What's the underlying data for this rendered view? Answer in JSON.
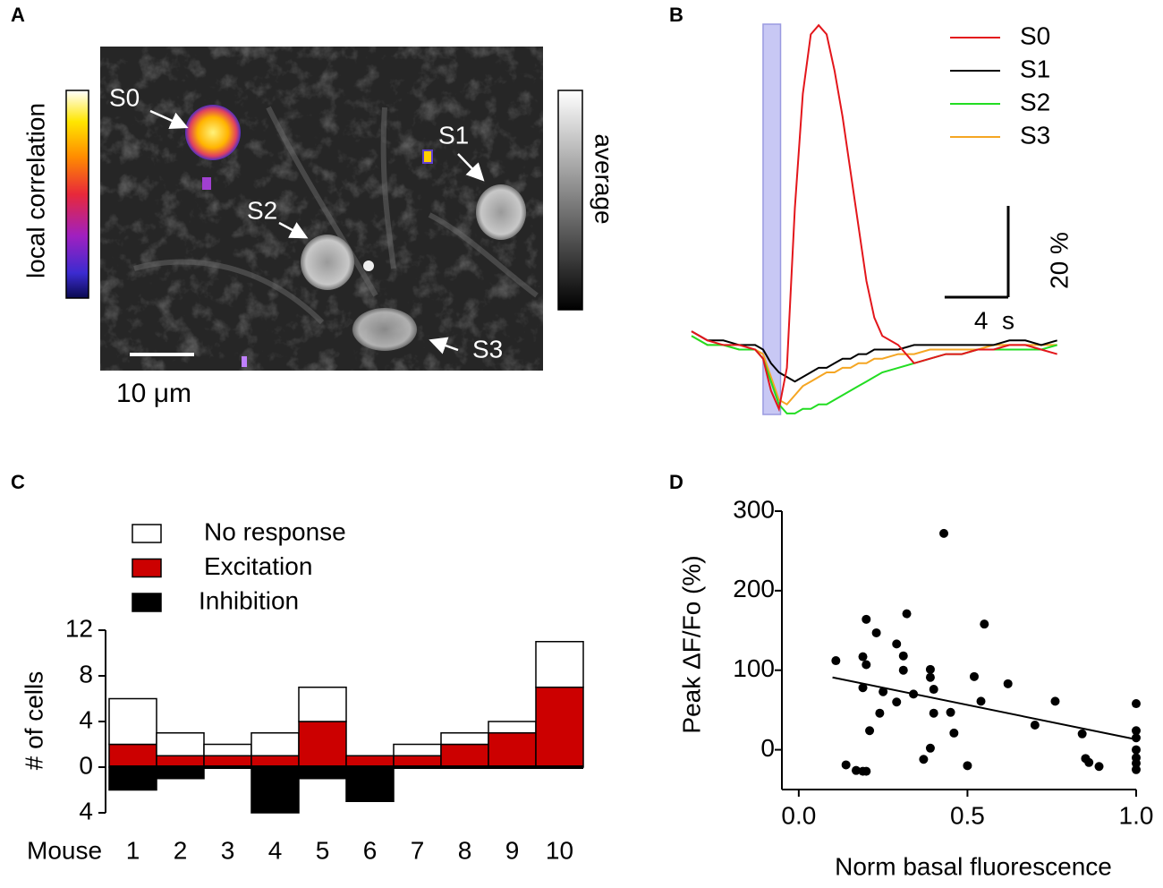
{
  "chart_data": [
    {
      "type": "image",
      "panel": "A",
      "labels": [
        "S0",
        "S1",
        "S2",
        "S3"
      ],
      "colorbar_left": "local correlation",
      "colorbar_right": "average",
      "scalebar": "10 μm"
    },
    {
      "type": "line",
      "panel": "B",
      "x": [
        0,
        1,
        2,
        3,
        4,
        4.5,
        5,
        5.5,
        6,
        6.5,
        7,
        7.5,
        8,
        8.5,
        9,
        9.5,
        10,
        10.5,
        11,
        11.5,
        12,
        13,
        14,
        15,
        16,
        17,
        18,
        19,
        20,
        21,
        22,
        23
      ],
      "xlim": [
        0,
        23.3
      ],
      "ylim": [
        -16,
        72
      ],
      "stimulus": [
        4.5,
        5.6
      ],
      "x_scalebar": {
        "value": 4,
        "label": "4  s"
      },
      "y_scalebar": {
        "value": 20,
        "label": "20 %"
      },
      "series": [
        {
          "name": "S0",
          "color": "#e3161b",
          "values": [
            3,
            1,
            0,
            0,
            -1,
            -3,
            -10,
            -14,
            -5,
            30,
            55,
            68,
            70,
            68,
            60,
            50,
            38,
            26,
            14,
            6,
            2,
            0,
            -4,
            -3,
            -2,
            -2,
            -1,
            -1,
            0,
            0,
            -1,
            -2
          ]
        },
        {
          "name": "S1",
          "color": "#000000",
          "values": [
            3,
            1,
            1,
            0,
            0,
            -1,
            -4,
            -6,
            -7,
            -8,
            -7,
            -6,
            -5,
            -5,
            -4,
            -3,
            -3,
            -2,
            -2,
            -1,
            -1,
            -1,
            0,
            0,
            0,
            0,
            0,
            0,
            1,
            1,
            0,
            1
          ]
        },
        {
          "name": "S2",
          "color": "#22dd22",
          "values": [
            2,
            0,
            0,
            -1,
            -1,
            -3,
            -8,
            -13,
            -15,
            -15,
            -14,
            -14,
            -13,
            -13,
            -12,
            -11,
            -10,
            -9,
            -8,
            -7,
            -6,
            -5,
            -4,
            -3,
            -2,
            -2,
            -1,
            -1,
            -1,
            -1,
            -1,
            0
          ]
        },
        {
          "name": "S3",
          "color": "#f5a623",
          "values": [
            2,
            0,
            0,
            -1,
            -1,
            -2,
            -7,
            -12,
            -13,
            -11,
            -9,
            -8,
            -7,
            -6,
            -6,
            -5,
            -5,
            -4,
            -4,
            -3,
            -3,
            -2,
            -2,
            -1,
            -1,
            -1,
            -1,
            0,
            0,
            0,
            0,
            0
          ]
        }
      ]
    },
    {
      "type": "bar",
      "panel": "C",
      "stacked": true,
      "x_label": "Mouse",
      "y_label": "# of cells",
      "categories": [
        "1",
        "2",
        "3",
        "4",
        "5",
        "6",
        "7",
        "8",
        "9",
        "10"
      ],
      "ylim": [
        -4,
        12
      ],
      "yticks": [
        {
          "value": -4,
          "label": "4"
        },
        0,
        4,
        8,
        12
      ],
      "series": [
        {
          "name": "No response",
          "color": "#ffffff",
          "values": [
            4,
            2,
            1,
            2,
            3,
            0,
            1,
            1,
            1,
            4
          ]
        },
        {
          "name": "Excitation",
          "color": "#cc0000",
          "values": [
            2,
            1,
            1,
            1,
            4,
            1,
            1,
            2,
            3,
            7
          ]
        },
        {
          "name": "Inhibition",
          "color": "#000000",
          "values": [
            -2,
            -1,
            0,
            -4,
            -1,
            -3,
            0,
            0,
            0,
            0
          ]
        }
      ]
    },
    {
      "type": "scatter",
      "panel": "D",
      "x_label": "Norm basal fluorescence",
      "y_label": "Peak ΔF/Fo  (%)",
      "xlim": [
        -0.05,
        1.0
      ],
      "ylim": [
        -50,
        300
      ],
      "xticks": [
        {
          "value": 0,
          "label": "0.0"
        },
        {
          "value": 0.5,
          "label": "0.5"
        },
        {
          "value": 1,
          "label": "1.0"
        }
      ],
      "yticks": [
        0,
        100,
        200,
        300
      ],
      "color": "#000000",
      "x": [
        0.11,
        0.14,
        0.17,
        0.19,
        0.2,
        0.19,
        0.21,
        0.2,
        0.23,
        0.2,
        0.19,
        0.25,
        0.24,
        0.29,
        0.32,
        0.29,
        0.31,
        0.31,
        0.34,
        0.37,
        0.39,
        0.39,
        0.4,
        0.4,
        0.39,
        0.43,
        0.45,
        0.46,
        0.5,
        0.52,
        0.54,
        0.55,
        0.62,
        0.7,
        0.76,
        0.84,
        0.85,
        0.86,
        0.89,
        1.0,
        1.0,
        1.0,
        1.0,
        1.0,
        1.0,
        1.0
      ],
      "y": [
        112,
        -19,
        -26,
        -27,
        -27,
        117,
        24,
        164,
        147,
        107,
        78,
        73,
        46,
        60,
        171,
        133,
        118,
        100,
        70,
        -12,
        91,
        101,
        76,
        46,
        2,
        272,
        47,
        21,
        -20,
        92,
        61,
        158,
        83,
        31,
        61,
        20,
        -11,
        -16,
        -21,
        58,
        24,
        15,
        0,
        -10,
        -17,
        -25
      ],
      "fit": {
        "x": [
          0.1,
          1.0
        ],
        "y": [
          91,
          13
        ]
      }
    }
  ]
}
